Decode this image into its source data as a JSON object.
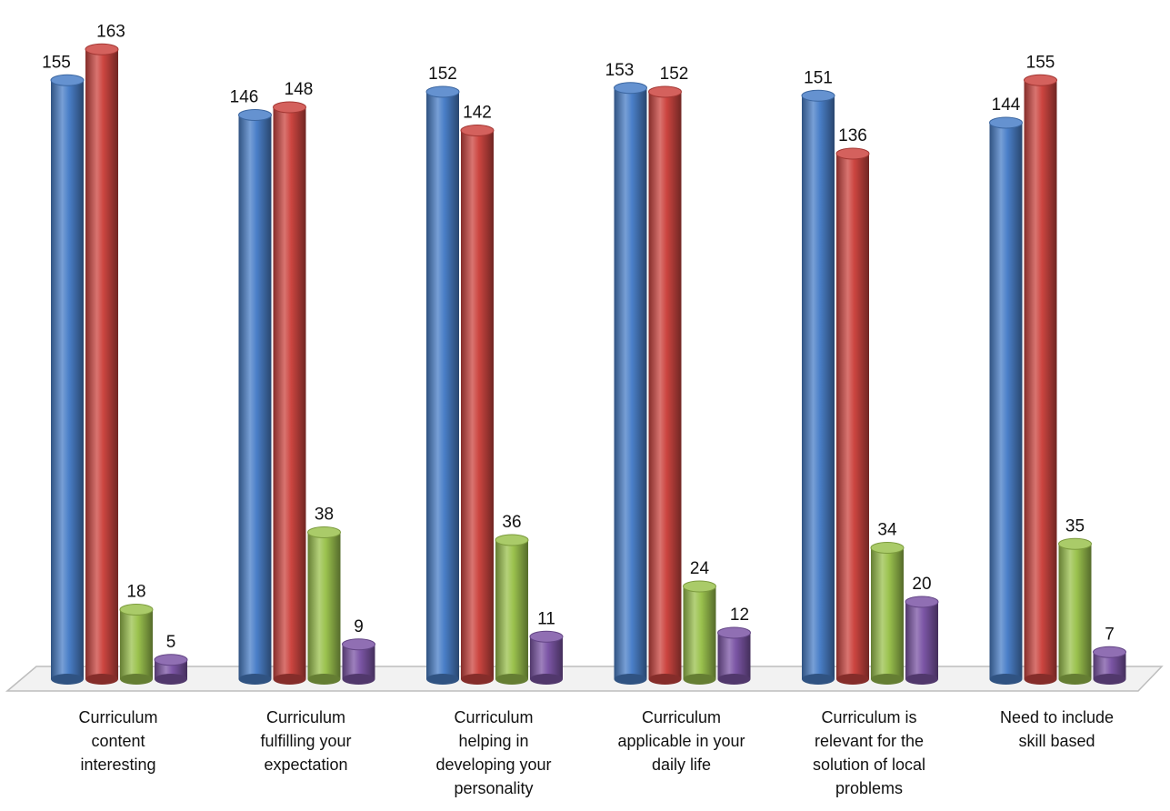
{
  "chart_data": {
    "type": "bar",
    "title": "",
    "xlabel": "",
    "ylabel": "",
    "ylim": [
      0,
      170
    ],
    "grid": false,
    "legend": "none",
    "categories": [
      "Curriculum\ncontent\ninteresting",
      "Curriculum\nfulfilling your\nexpectation",
      "Curriculum\nhelping in\ndeveloping your\npersonality",
      "Curriculum\napplicable in your\ndaily life",
      "Curriculum is\nrelevant for the\nsolution of local\nproblems",
      "Need to include\nskill based"
    ],
    "series": [
      {
        "values": [
          155,
          146,
          152,
          153,
          151,
          144
        ],
        "color": "#4a7fc8"
      },
      {
        "values": [
          163,
          148,
          142,
          152,
          136,
          155
        ],
        "color": "#cc4540"
      },
      {
        "values": [
          18,
          38,
          36,
          24,
          34,
          35
        ],
        "color": "#9bc24e"
      },
      {
        "values": [
          5,
          9,
          11,
          12,
          20,
          7
        ],
        "color": "#7c56a6"
      }
    ]
  }
}
